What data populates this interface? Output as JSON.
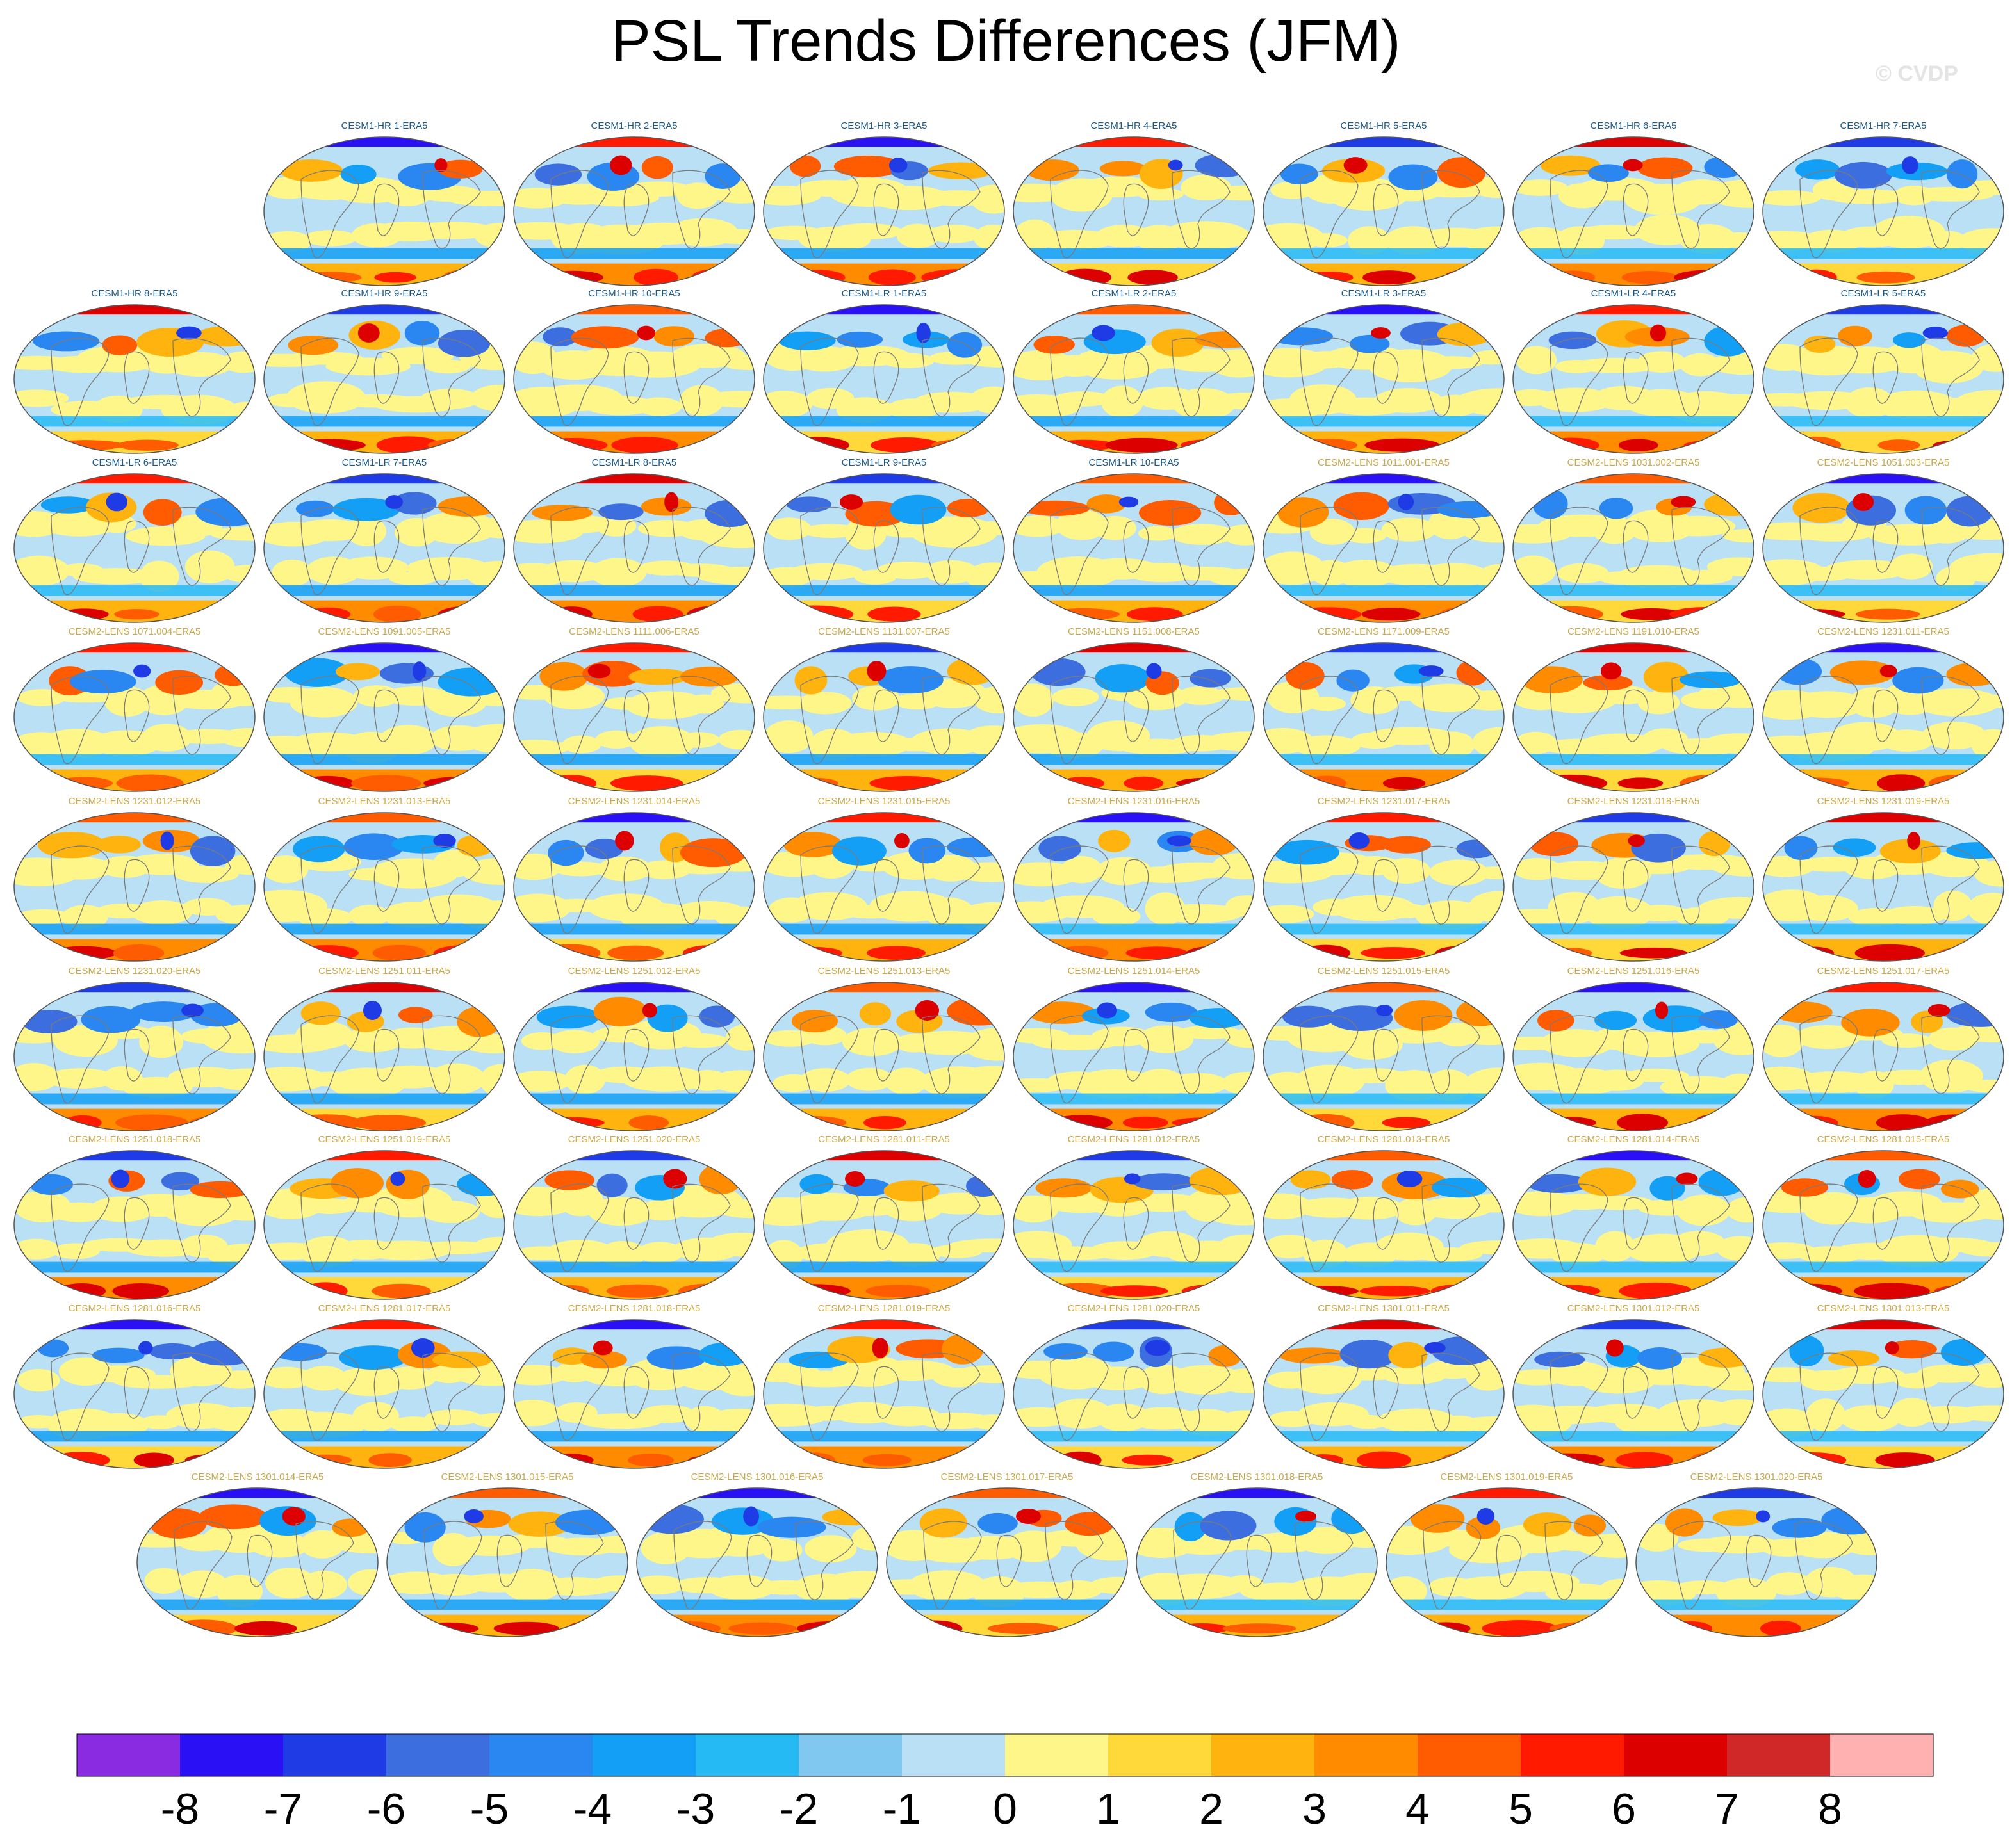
{
  "chart_data": {
    "type": "map_grid",
    "title": "PSL Trends Differences (JFM)",
    "credit": "© CVDP",
    "season": "JFM",
    "variable": "PSL",
    "colorbar": {
      "ticks": [
        "-8",
        "-7",
        "-6",
        "-5",
        "-4",
        "-3",
        "-2",
        "-1",
        "0",
        "1",
        "2",
        "3",
        "4",
        "5",
        "6",
        "7",
        "8"
      ],
      "range": [
        -9,
        9
      ],
      "step": 1,
      "colors": [
        "#8a2be2",
        "#2a10f5",
        "#1f3be6",
        "#3c6ee0",
        "#2a86f0",
        "#139ff5",
        "#26baf5",
        "#80c8ef",
        "#b9e0f5",
        "#fff68a",
        "#ffd83a",
        "#ffb30f",
        "#ff8c00",
        "#ff5b00",
        "#ff1a00",
        "#dd0000",
        "#d02828",
        "#ffb0b0"
      ]
    },
    "panels": [
      {
        "label": "CESM1-HR 1-ERA5"
      },
      {
        "label": "CESM1-HR 2-ERA5"
      },
      {
        "label": "CESM1-HR 3-ERA5"
      },
      {
        "label": "CESM1-HR 4-ERA5"
      },
      {
        "label": "CESM1-HR 5-ERA5"
      },
      {
        "label": "CESM1-HR 6-ERA5"
      },
      {
        "label": "CESM1-HR 7-ERA5"
      },
      {
        "label": "CESM1-HR 8-ERA5"
      },
      {
        "label": "CESM1-HR 9-ERA5"
      },
      {
        "label": "CESM1-HR 10-ERA5"
      },
      {
        "label": "CESM1-LR 1-ERA5"
      },
      {
        "label": "CESM1-LR 2-ERA5"
      },
      {
        "label": "CESM1-LR 3-ERA5"
      },
      {
        "label": "CESM1-LR 4-ERA5"
      },
      {
        "label": "CESM1-LR 5-ERA5"
      },
      {
        "label": "CESM1-LR 6-ERA5"
      },
      {
        "label": "CESM1-LR 7-ERA5"
      },
      {
        "label": "CESM1-LR 8-ERA5"
      },
      {
        "label": "CESM1-LR 9-ERA5"
      },
      {
        "label": "CESM1-LR 10-ERA5"
      },
      {
        "label": "CESM2-LENS 1011.001-ERA5"
      },
      {
        "label": "CESM2-LENS 1031.002-ERA5"
      },
      {
        "label": "CESM2-LENS 1051.003-ERA5"
      },
      {
        "label": "CESM2-LENS 1071.004-ERA5"
      },
      {
        "label": "CESM2-LENS 1091.005-ERA5"
      },
      {
        "label": "CESM2-LENS 1111.006-ERA5"
      },
      {
        "label": "CESM2-LENS 1131.007-ERA5"
      },
      {
        "label": "CESM2-LENS 1151.008-ERA5"
      },
      {
        "label": "CESM2-LENS 1171.009-ERA5"
      },
      {
        "label": "CESM2-LENS 1191.010-ERA5"
      },
      {
        "label": "CESM2-LENS 1231.011-ERA5"
      },
      {
        "label": "CESM2-LENS 1231.012-ERA5"
      },
      {
        "label": "CESM2-LENS 1231.013-ERA5"
      },
      {
        "label": "CESM2-LENS 1231.014-ERA5"
      },
      {
        "label": "CESM2-LENS 1231.015-ERA5"
      },
      {
        "label": "CESM2-LENS 1231.016-ERA5"
      },
      {
        "label": "CESM2-LENS 1231.017-ERA5"
      },
      {
        "label": "CESM2-LENS 1231.018-ERA5"
      },
      {
        "label": "CESM2-LENS 1231.019-ERA5"
      },
      {
        "label": "CESM2-LENS 1231.020-ERA5"
      },
      {
        "label": "CESM2-LENS 1251.011-ERA5"
      },
      {
        "label": "CESM2-LENS 1251.012-ERA5"
      },
      {
        "label": "CESM2-LENS 1251.013-ERA5"
      },
      {
        "label": "CESM2-LENS 1251.014-ERA5"
      },
      {
        "label": "CESM2-LENS 1251.015-ERA5"
      },
      {
        "label": "CESM2-LENS 1251.016-ERA5"
      },
      {
        "label": "CESM2-LENS 1251.017-ERA5"
      },
      {
        "label": "CESM2-LENS 1251.018-ERA5"
      },
      {
        "label": "CESM2-LENS 1251.019-ERA5"
      },
      {
        "label": "CESM2-LENS 1251.020-ERA5"
      },
      {
        "label": "CESM2-LENS 1281.011-ERA5"
      },
      {
        "label": "CESM2-LENS 1281.012-ERA5"
      },
      {
        "label": "CESM2-LENS 1281.013-ERA5"
      },
      {
        "label": "CESM2-LENS 1281.014-ERA5"
      },
      {
        "label": "CESM2-LENS 1281.015-ERA5"
      },
      {
        "label": "CESM2-LENS 1281.016-ERA5"
      },
      {
        "label": "CESM2-LENS 1281.017-ERA5"
      },
      {
        "label": "CESM2-LENS 1281.018-ERA5"
      },
      {
        "label": "CESM2-LENS 1281.019-ERA5"
      },
      {
        "label": "CESM2-LENS 1281.020-ERA5"
      },
      {
        "label": "CESM2-LENS 1301.011-ERA5"
      },
      {
        "label": "CESM2-LENS 1301.012-ERA5"
      },
      {
        "label": "CESM2-LENS 1301.013-ERA5"
      },
      {
        "label": "CESM2-LENS 1301.014-ERA5"
      },
      {
        "label": "CESM2-LENS 1301.015-ERA5"
      },
      {
        "label": "CESM2-LENS 1301.016-ERA5"
      },
      {
        "label": "CESM2-LENS 1301.017-ERA5"
      },
      {
        "label": "CESM2-LENS 1301.018-ERA5"
      },
      {
        "label": "CESM2-LENS 1301.019-ERA5"
      },
      {
        "label": "CESM2-LENS 1301.020-ERA5"
      }
    ],
    "label_colors": {
      "CESM1": "#1a5a8a",
      "CESM2": "#c9a94a"
    }
  }
}
